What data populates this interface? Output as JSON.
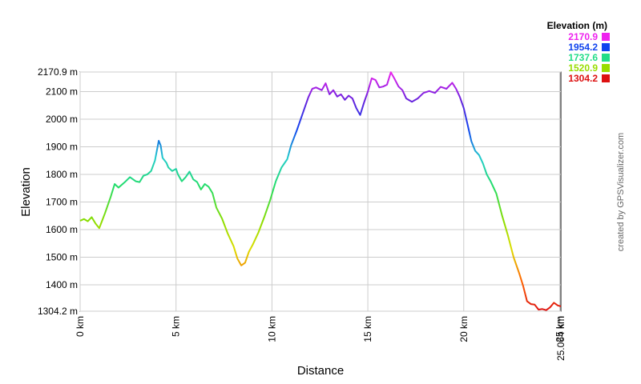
{
  "chart_data": {
    "type": "line",
    "title": "",
    "xlabel": "Distance",
    "ylabel": "Elevation",
    "x_unit": "km",
    "y_unit": "m",
    "xlim": [
      0,
      25.064
    ],
    "ylim": [
      1304.2,
      2170.9
    ],
    "grid": true,
    "x_ticks": [
      {
        "value": 0,
        "label": "0 km"
      },
      {
        "value": 5,
        "label": "5 km"
      },
      {
        "value": 10,
        "label": "10 km"
      },
      {
        "value": 15,
        "label": "15 km"
      },
      {
        "value": 20,
        "label": "20 km"
      },
      {
        "value": 25,
        "label": "25 km"
      },
      {
        "value": 25.064,
        "label": "25.064 km"
      }
    ],
    "y_ticks": [
      {
        "value": 1304.2,
        "label": "1304.2 m"
      },
      {
        "value": 1400,
        "label": "1400 m"
      },
      {
        "value": 1500,
        "label": "1500 m"
      },
      {
        "value": 1600,
        "label": "1600 m"
      },
      {
        "value": 1700,
        "label": "1700 m"
      },
      {
        "value": 1800,
        "label": "1800 m"
      },
      {
        "value": 1900,
        "label": "1900 m"
      },
      {
        "value": 2000,
        "label": "2000 m"
      },
      {
        "value": 2100,
        "label": "2100 m"
      },
      {
        "value": 2170.9,
        "label": "2170.9 m"
      }
    ],
    "color_legend": {
      "title": "Elevation (m)",
      "entries": [
        {
          "label": "2170.9",
          "color": "#ee22ee"
        },
        {
          "label": "1954.2",
          "color": "#1144ee"
        },
        {
          "label": "1737.6",
          "color": "#22dd88"
        },
        {
          "label": "1520.9",
          "color": "#99dd00"
        },
        {
          "label": "1304.2",
          "color": "#dd1111"
        }
      ]
    },
    "series": [
      {
        "x": [
          0,
          0.2,
          0.4,
          0.6,
          0.8,
          1.0,
          1.3,
          1.6,
          1.8,
          2.0,
          2.3,
          2.6,
          2.9,
          3.1,
          3.3,
          3.5,
          3.7,
          3.9,
          4.1,
          4.2,
          4.3,
          4.5,
          4.6,
          4.8,
          5.0,
          5.1,
          5.3,
          5.5,
          5.7,
          5.9,
          6.1,
          6.3,
          6.5,
          6.7,
          6.9,
          7.1,
          7.4,
          7.7,
          8.0,
          8.2,
          8.4,
          8.6,
          8.8,
          9.0,
          9.3,
          9.6,
          9.9,
          10.2,
          10.5,
          10.8,
          11.0,
          11.3,
          11.6,
          11.9,
          12.1,
          12.3,
          12.6,
          12.8,
          13.0,
          13.2,
          13.4,
          13.6,
          13.8,
          14.0,
          14.2,
          14.4,
          14.6,
          14.8,
          15.0,
          15.2,
          15.4,
          15.6,
          15.8,
          16.0,
          16.2,
          16.4,
          16.6,
          16.8,
          17.0,
          17.3,
          17.6,
          17.9,
          18.2,
          18.5,
          18.8,
          19.1,
          19.4,
          19.6,
          19.8,
          20.0,
          20.2,
          20.4,
          20.6,
          20.8,
          21.0,
          21.2,
          21.4,
          21.7,
          22.0,
          22.3,
          22.6,
          22.9,
          23.1,
          23.3,
          23.5,
          23.7,
          23.9,
          24.1,
          24.3,
          24.5,
          24.7,
          24.9,
          25.064
        ],
        "y": [
          1632,
          1638,
          1630,
          1645,
          1622,
          1605,
          1660,
          1720,
          1765,
          1752,
          1770,
          1790,
          1775,
          1772,
          1795,
          1800,
          1812,
          1850,
          1922,
          1905,
          1860,
          1842,
          1825,
          1812,
          1820,
          1800,
          1775,
          1790,
          1810,
          1782,
          1772,
          1745,
          1765,
          1755,
          1732,
          1680,
          1640,
          1585,
          1540,
          1495,
          1470,
          1480,
          1520,
          1545,
          1590,
          1645,
          1705,
          1775,
          1825,
          1855,
          1905,
          1960,
          2020,
          2080,
          2110,
          2115,
          2105,
          2130,
          2090,
          2105,
          2082,
          2090,
          2070,
          2085,
          2075,
          2040,
          2015,
          2060,
          2100,
          2148,
          2142,
          2115,
          2118,
          2125,
          2170,
          2145,
          2118,
          2105,
          2075,
          2063,
          2075,
          2095,
          2102,
          2095,
          2117,
          2110,
          2132,
          2110,
          2080,
          2040,
          1980,
          1920,
          1885,
          1870,
          1840,
          1800,
          1775,
          1730,
          1650,
          1580,
          1500,
          1440,
          1395,
          1340,
          1330,
          1328,
          1310,
          1312,
          1308,
          1318,
          1335,
          1325,
          1322
        ]
      }
    ]
  },
  "credit": "created by GPSVisualizer.com"
}
